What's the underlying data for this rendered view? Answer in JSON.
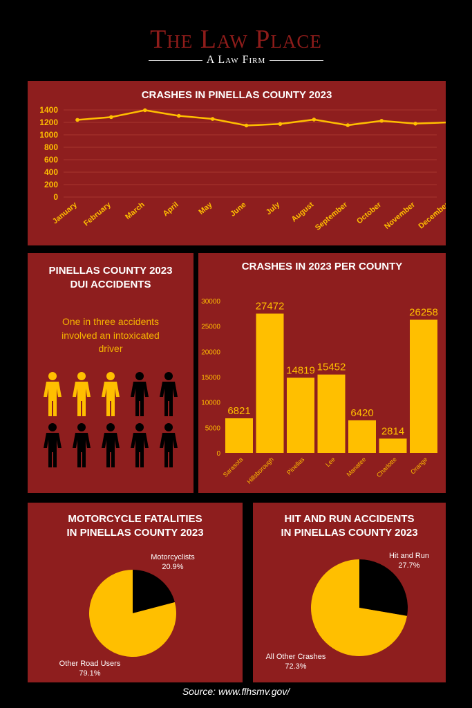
{
  "brand": {
    "title": "The Law Place",
    "subtitle": "A Law Firm"
  },
  "colors": {
    "panel": "#8e1e1e",
    "accent": "#ffbf00",
    "dark": "#000000"
  },
  "source": "Source: www.flhsmv.gov/",
  "dui": {
    "title_line1": "PINELLAS COUNTY 2023",
    "title_line2": "DUI ACCIDENTS",
    "text_line1": "One in three accidents",
    "text_line2": "involved an intoxicated",
    "text_line3": "driver",
    "figures_total": 10,
    "figures_highlighted": 3
  },
  "chart_data": [
    {
      "type": "line",
      "title": "CRASHES IN PINELLAS COUNTY 2023",
      "categories": [
        "January",
        "February",
        "March",
        "April",
        "May",
        "June",
        "July",
        "August",
        "September",
        "October",
        "November",
        "December"
      ],
      "values": [
        1240,
        1285,
        1395,
        1305,
        1255,
        1150,
        1175,
        1245,
        1155,
        1225,
        1180,
        1200
      ],
      "ylim": [
        0,
        1400
      ],
      "yticks": [
        0,
        200,
        400,
        600,
        800,
        1000,
        1200,
        1400
      ],
      "grid": true
    },
    {
      "type": "bar",
      "title": "CRASHES IN 2023 PER COUNTY",
      "categories": [
        "Sarasota",
        "Hillsborough",
        "Pinellas",
        "Lee",
        "Manatee",
        "Charlotte",
        "Orange"
      ],
      "values": [
        6821,
        27472,
        14819,
        15452,
        6420,
        2814,
        26258
      ],
      "ylim": [
        0,
        30000
      ],
      "yticks": [
        0,
        5000,
        10000,
        15000,
        20000,
        25000,
        30000
      ],
      "grid": false
    },
    {
      "type": "pie",
      "title_line1": "MOTORCYCLE FATALITIES",
      "title_line2": "IN PINELLAS COUNTY 2023",
      "slices": [
        {
          "label": "Motorcyclists",
          "value": 20.9,
          "value_label": "20.9%",
          "color": "#000000"
        },
        {
          "label": "Other Road Users",
          "value": 79.1,
          "value_label": "79.1%",
          "color": "#ffbf00"
        }
      ]
    },
    {
      "type": "pie",
      "title_line1": "HIT AND RUN ACCIDENTS",
      "title_line2": "IN PINELLAS COUNTY 2023",
      "slices": [
        {
          "label": "Hit and Run",
          "value": 27.7,
          "value_label": "27.7%",
          "color": "#000000"
        },
        {
          "label": "All Other Crashes",
          "value": 72.3,
          "value_label": "72.3%",
          "color": "#ffbf00"
        }
      ]
    }
  ]
}
